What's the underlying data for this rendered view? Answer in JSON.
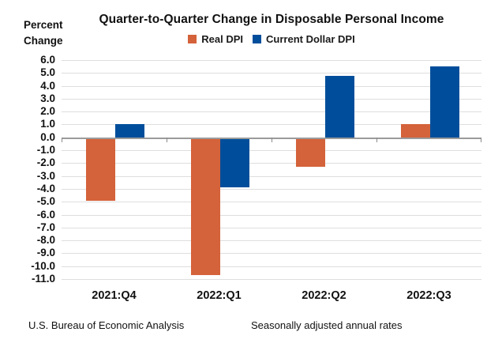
{
  "header": {
    "y_axis_unit_line1": "Percent",
    "y_axis_unit_line2": "Change",
    "title": "Quarter-to-Quarter Change in Disposable Personal Income"
  },
  "legend": [
    {
      "label": "Real DPI",
      "color": "#D4623A",
      "icon": "orange-square-swatch"
    },
    {
      "label": "Current Dollar DPI",
      "color": "#004E9B",
      "icon": "blue-square-swatch"
    }
  ],
  "footer": {
    "left": "U.S. Bureau of Economic Analysis",
    "right": "Seasonally adjusted annual rates"
  },
  "colors": {
    "real_dpi": "#D4623A",
    "current_dollar_dpi": "#004E9B",
    "gridline": "#dedede",
    "zero_line": "#9b9b9b",
    "text": "#111111"
  },
  "chart_data": {
    "type": "bar",
    "title": "Quarter-to-Quarter Change in Disposable Personal Income",
    "ylabel": "Percent Change",
    "xlabel": "",
    "categories": [
      "2021:Q4",
      "2022:Q1",
      "2022:Q2",
      "2022:Q3"
    ],
    "series": [
      {
        "name": "Real DPI",
        "color": "#D4623A",
        "values": [
          -4.9,
          -10.7,
          -2.3,
          1.0
        ]
      },
      {
        "name": "Current Dollar DPI",
        "color": "#004E9B",
        "values": [
          1.0,
          -3.9,
          4.8,
          5.5
        ]
      }
    ],
    "ylim": [
      -11.0,
      6.0
    ],
    "ytick_step": 1.0,
    "yticks": [
      "6.0",
      "5.0",
      "4.0",
      "3.0",
      "2.0",
      "1.0",
      "0.0",
      "-1.0",
      "-2.0",
      "-3.0",
      "-4.0",
      "-5.0",
      "-6.0",
      "-7.0",
      "-8.0",
      "-9.0",
      "-10.0",
      "-11.0"
    ],
    "grid": true,
    "legend_position": "top-center",
    "notes": [
      "U.S. Bureau of Economic Analysis",
      "Seasonally adjusted annual rates"
    ]
  }
}
